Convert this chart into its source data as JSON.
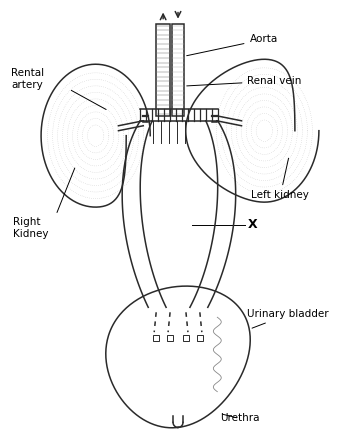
{
  "bg_color": "#ffffff",
  "line_color": "#2a2a2a",
  "label_color": "#000000",
  "labels": {
    "aorta": "Aorta",
    "renal_vein": "Renal vein",
    "left_kidney": "Left kidney",
    "right_kidney": "Right\nKidney",
    "rental_artery": "Rental\nartery",
    "urinary_bladder": "Urinary bladder",
    "urethra": "Urethra",
    "x_label": "X"
  },
  "figsize": [
    3.59,
    4.42
  ],
  "dpi": 100
}
